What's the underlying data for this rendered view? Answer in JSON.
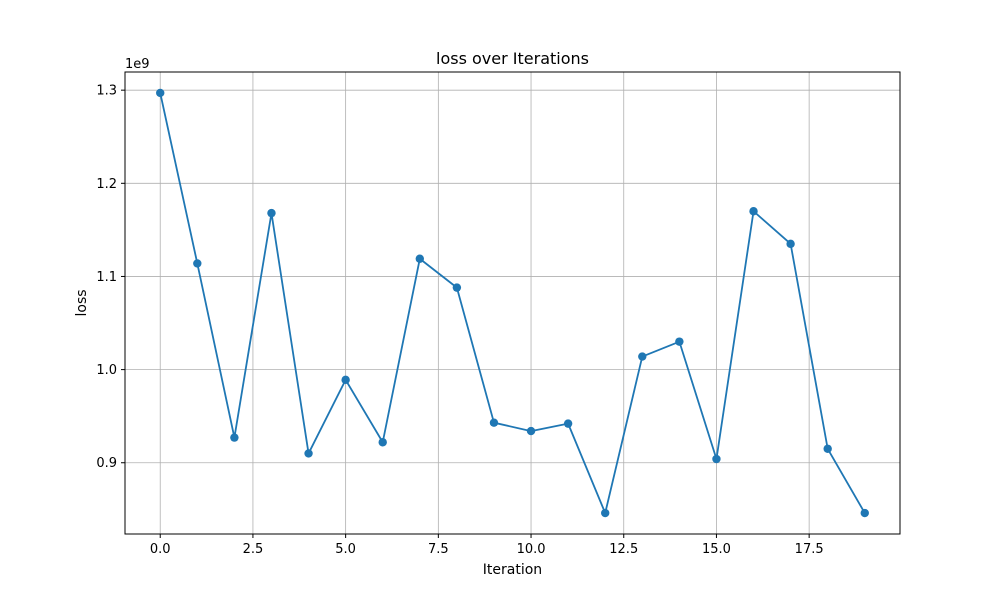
{
  "chart_data": {
    "type": "line",
    "title": "loss over Iterations",
    "xlabel": "Iteration",
    "ylabel": "loss",
    "offset_text": "1e9",
    "x": [
      0,
      1,
      2,
      3,
      4,
      5,
      6,
      7,
      8,
      9,
      10,
      11,
      12,
      13,
      14,
      15,
      16,
      17,
      18,
      19
    ],
    "series": [
      {
        "values": [
          1.297,
          1.114,
          0.927,
          1.168,
          0.91,
          0.989,
          0.922,
          1.119,
          1.088,
          0.943,
          0.934,
          0.942,
          0.846,
          1.014,
          1.03,
          0.904,
          1.17,
          1.135,
          0.915,
          0.846
        ],
        "color": "#1f77b4",
        "marker": "circle"
      }
    ],
    "xlim": [
      -0.95,
      19.95
    ],
    "ylim": [
      0.8235,
      1.3195
    ],
    "xticks": [
      0.0,
      2.5,
      5.0,
      7.5,
      10.0,
      12.5,
      15.0,
      17.5
    ],
    "xtick_labels": [
      "0.0",
      "2.5",
      "5.0",
      "7.5",
      "10.0",
      "12.5",
      "15.0",
      "17.5"
    ],
    "yticks": [
      0.9,
      1.0,
      1.1,
      1.2,
      1.3
    ],
    "ytick_labels": [
      "0.9",
      "1.0",
      "1.1",
      "1.2",
      "1.3"
    ],
    "grid": true,
    "legend": "none"
  }
}
